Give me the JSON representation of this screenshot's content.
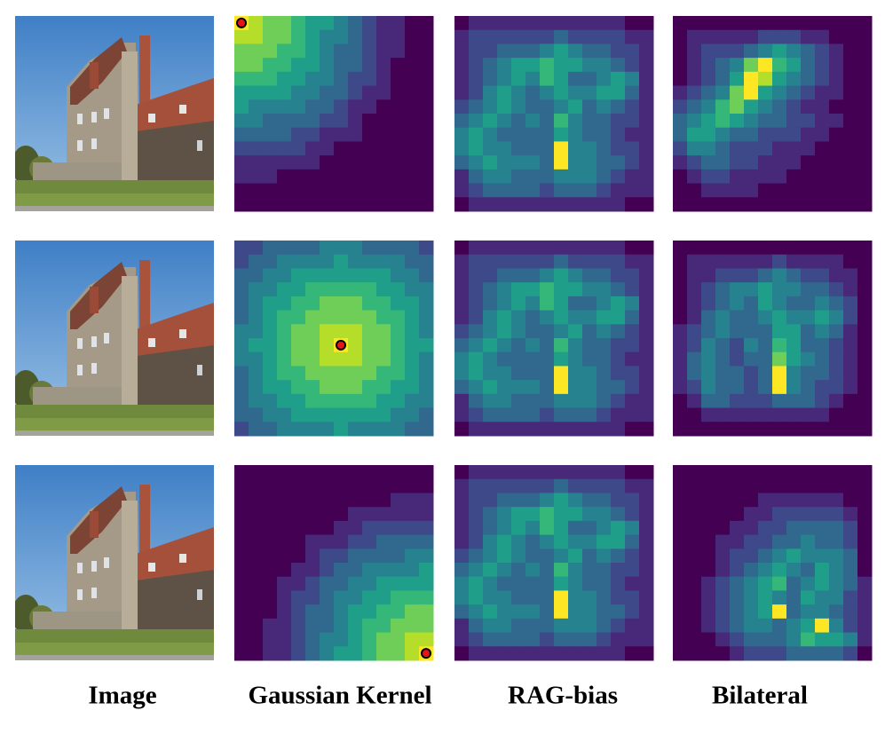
{
  "columns": [
    "Image",
    "Gaussian Kernel",
    "RAG-bias",
    "Bilateral"
  ],
  "colormap": [
    "#440154",
    "#482878",
    "#3e4989",
    "#31688e",
    "#26828e",
    "#1f9e89",
    "#35b779",
    "#6ece58",
    "#b5de2b",
    "#fde725"
  ],
  "rows": [
    {
      "query": {
        "row": 0,
        "col": 0
      },
      "gaussian": [
        "98776554321100",
        "88776544321100",
        "77766543321100",
        "77665543321000",
        "66655443221000",
        "55554433211000",
        "54444332110000",
        "44333322100000",
        "33332211100000",
        "22222110000000",
        "11111100000000",
        "11100000000000",
        "00000000000000",
        "00000000000000"
      ],
      "rag_bias": [
        "01111111111100",
        "12222223222211",
        "12233345433221",
        "12345565544321",
        "12345465334541",
        "12454345445531",
        "23454334534321",
        "34543436433221",
        "45433335433211",
        "45443339443221",
        "34544439443321",
        "13443334443211",
        "12333323332111",
        "01111111111100"
      ],
      "bilateral": [
        "00000000000000",
        "01111122211000",
        "01222345432100",
        "01234796532100",
        "01235985432100",
        "12347954321100",
        "23467543211000",
        "34565433221100",
        "35543322211000",
        "24432221110000",
        "12332211100000",
        "01221111000000",
        "00111100000000",
        "00000000000000"
      ]
    },
    {
      "query": {
        "row": 7,
        "col": 7
      },
      "gaussian": [
        "22333344433332",
        "23344445444433",
        "33445555555443",
        "34455666665544",
        "34556677766554",
        "34566777776654",
        "44567788877654",
        "45567789877655",
        "44567788877654",
        "34566777776654",
        "34556677766554",
        "34455666665544",
        "33445555555443",
        "23344445444433"
      ],
      "rag_bias": [
        "01111111111100",
        "12222223222211",
        "12233345433221",
        "12345565544321",
        "12345465334541",
        "12454345445531",
        "23454334534321",
        "34543436433221",
        "45433335433211",
        "45443339443221",
        "34544439443321",
        "13443334443211",
        "12333323332111",
        "01111111111100"
      ],
      "bilateral": [
        "00000000000000",
        "01111112111100",
        "01122234322110",
        "01234454433210",
        "01234354334320",
        "01343345445420",
        "12343335534310",
        "12432436533210",
        "13432337543210",
        "13433239433210",
        "12433239432210",
        "01332223332100",
        "00111111111000",
        "00000000000000"
      ]
    },
    {
      "query": {
        "row": 13,
        "col": 13
      },
      "gaussian": [
        "00000000000000",
        "00000000000000",
        "00000000000111",
        "00000000111111",
        "00000001122222",
        "00000111223333",
        "00000122333344",
        "00001123344445",
        "00011233445555",
        "00012234455666",
        "00012334556677",
        "00112334566777",
        "00112344567788",
        "00112345567789"
      ],
      "rag_bias": [
        "01111111111100",
        "12222223222211",
        "12233345433221",
        "12345565544321",
        "12345465334541",
        "12454345445531",
        "23454334534321",
        "34543436433221",
        "45433335433211",
        "45443339443221",
        "34544439443321",
        "13443334443211",
        "12333323332111",
        "01111111111100"
      ],
      "bilateral": [
        "00000000000000",
        "00000000000000",
        "00000011111100",
        "00000112222210",
        "00001122333320",
        "00011223343320",
        "00012234544430",
        "00012345435430",
        "00123456345431",
        "00123454354421",
        "00123459344321",
        "00123443459421",
        "00012333465541",
        "00001222333320"
      ]
    }
  ]
}
